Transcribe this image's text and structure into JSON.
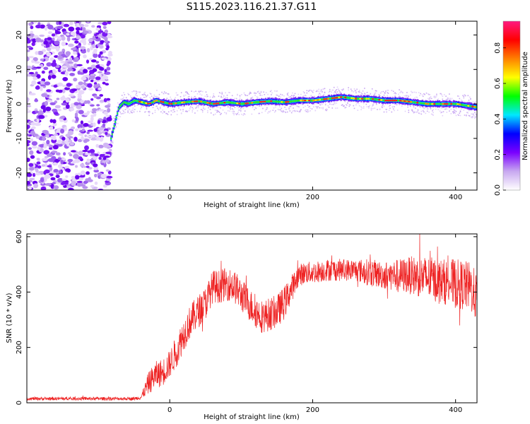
{
  "title": "S115.2023.116.21.37.G11",
  "chart_data": [
    {
      "type": "heatmap",
      "xlabel": "Height of straight line (km)",
      "ylabel": "Frequency (Hz)",
      "xlim": [
        -200,
        430
      ],
      "ylim": [
        -25,
        24
      ],
      "xticks": [
        0,
        200,
        400
      ],
      "yticks": [
        -20,
        -10,
        0,
        10,
        20
      ],
      "grid": false,
      "colorbar": {
        "label": "Normalized spectral amplitude",
        "range": [
          0.0,
          0.95
        ],
        "ticks": [
          "0.0",
          "0.2",
          "0.4",
          "0.6",
          "0.8"
        ],
        "tick_values": [
          0.0,
          0.2,
          0.4,
          0.6,
          0.8
        ],
        "colors": [
          "#ffffff",
          "#c8a8f0",
          "#7a00ff",
          "#0000ff",
          "#00e8ff",
          "#00ff00",
          "#ffff00",
          "#ff8000",
          "#ff0000",
          "#ff1a80"
        ]
      },
      "noise_region_x": [
        -200,
        -83
      ],
      "ridge": {
        "x": [
          -83,
          -78,
          -72,
          -65,
          -58,
          -50,
          -40,
          -30,
          -20,
          -10,
          0,
          20,
          40,
          60,
          80,
          100,
          120,
          140,
          160,
          180,
          200,
          220,
          240,
          260,
          280,
          300,
          320,
          340,
          360,
          380,
          400,
          430
        ],
        "freq": [
          -10,
          -6,
          -1,
          0.5,
          0,
          1,
          0.5,
          0,
          1,
          0.5,
          0,
          0.5,
          0.8,
          0,
          0.5,
          0,
          0.5,
          0.8,
          0.5,
          1,
          1,
          1.5,
          2,
          1.5,
          1.5,
          1,
          1,
          0.5,
          0,
          0,
          0,
          -1
        ]
      }
    },
    {
      "type": "line",
      "xlabel": "Height of straight line (km)",
      "ylabel": "SNR (10 * v/v)",
      "xlim": [
        -200,
        430
      ],
      "ylim": [
        0,
        610
      ],
      "xticks": [
        0,
        200,
        400
      ],
      "yticks": [
        0,
        200,
        400,
        600
      ],
      "grid": false,
      "series": [
        {
          "color": "#ee2222",
          "x": [
            -200,
            -150,
            -100,
            -50,
            -40,
            -30,
            -20,
            -10,
            0,
            10,
            20,
            30,
            40,
            50,
            60,
            70,
            80,
            90,
            100,
            110,
            120,
            130,
            140,
            150,
            160,
            170,
            180,
            190,
            200,
            220,
            240,
            260,
            280,
            300,
            320,
            340,
            360,
            380,
            400,
            420,
            430
          ],
          "y": [
            15,
            15,
            15,
            15,
            20,
            70,
            100,
            110,
            140,
            190,
            250,
            300,
            330,
            360,
            420,
            420,
            430,
            420,
            390,
            360,
            330,
            310,
            320,
            330,
            360,
            410,
            460,
            470,
            470,
            480,
            480,
            480,
            470,
            460,
            460,
            460,
            450,
            440,
            430,
            420,
            380
          ],
          "noise_amplitude": [
            6,
            6,
            6,
            6,
            8,
            40,
            50,
            50,
            50,
            60,
            60,
            60,
            60,
            60,
            60,
            60,
            60,
            60,
            60,
            60,
            60,
            60,
            60,
            60,
            60,
            50,
            40,
            40,
            40,
            40,
            40,
            40,
            50,
            50,
            60,
            70,
            80,
            80,
            90,
            90,
            90
          ]
        }
      ]
    }
  ]
}
